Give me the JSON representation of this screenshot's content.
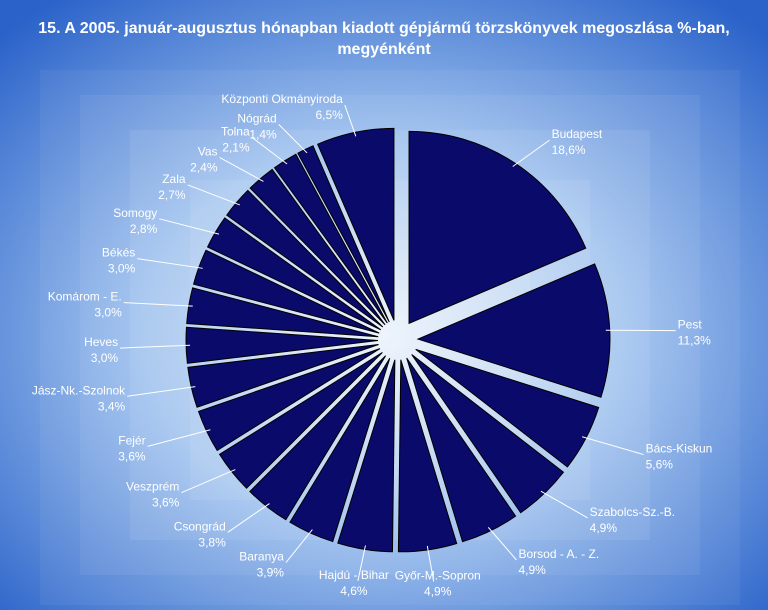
{
  "chart_data": {
    "type": "pie",
    "title": "15. A  2005. január-augusztus hónapban kiadott gépjármű törzskönyvek megoszlása %-ban, megyénként",
    "categories": [
      "Budapest",
      "Pest",
      "Bács-Kiskun",
      "Szabolcs-Sz.-B.",
      "Borsod - A. - Z.",
      "Győr-M.-Sopron",
      "Hajdú - Bihar",
      "Baranya",
      "Csongrád",
      "Veszprém",
      "Fejér",
      "Jász-Nk.-Szolnok",
      "Heves",
      "Komárom - E.",
      "Békés",
      "Somogy",
      "Zala",
      "Vas",
      "Tolna",
      "Nógrád",
      "Központi Okmányiroda"
    ],
    "values": [
      18.6,
      11.3,
      5.6,
      4.9,
      4.9,
      4.9,
      4.6,
      3.9,
      3.8,
      3.6,
      3.6,
      3.4,
      3.0,
      3.0,
      3.0,
      2.8,
      2.7,
      2.4,
      2.1,
      1.4,
      6.5
    ],
    "value_labels": [
      "18,6%",
      "11,3%",
      "5,6%",
      "4,9%",
      "4,9%",
      "4,9%",
      "4,6%",
      "3,9%",
      "3,8%",
      "3,6%",
      "3,6%",
      "3,4%",
      "3,0%",
      "3,0%",
      "3,0%",
      "2,8%",
      "2,7%",
      "2,4%",
      "2,1%",
      "1,4%",
      "6,5%"
    ],
    "color": "#0a0a6b"
  }
}
